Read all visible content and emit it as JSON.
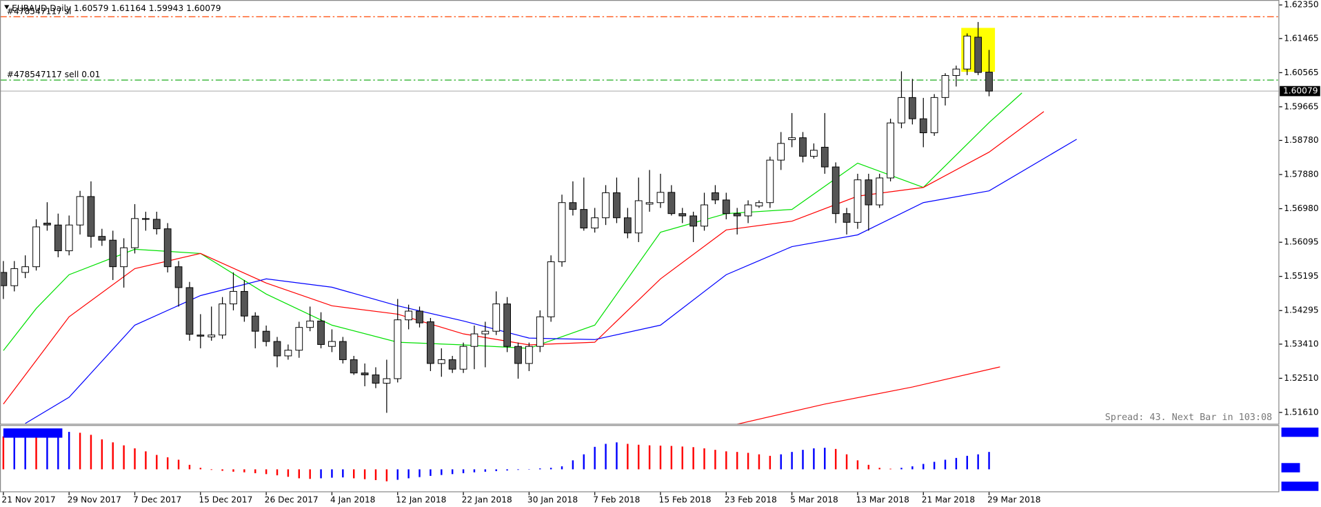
{
  "chart_data": {
    "type": "candlestick",
    "title": "EURAUD,Daily  1.60579 1.61164 1.59943 1.60079",
    "info": "Spread: 43. Next Bar in 103:08",
    "categories": [
      "21 Nov 2017",
      null,
      null,
      null,
      null,
      null,
      "29 Nov 2017",
      null,
      null,
      null,
      null,
      null,
      "7 Dec 2017",
      null,
      null,
      null,
      null,
      null,
      "15 Dec 2017",
      null,
      null,
      null,
      null,
      null,
      "26 Dec 2017",
      null,
      null,
      null,
      null,
      null,
      "4 Jan 2018",
      null,
      null,
      null,
      null,
      null,
      "12 Jan 2018",
      null,
      null,
      null,
      null,
      null,
      "22 Jan 2018",
      null,
      null,
      null,
      null,
      null,
      "30 Jan 2018",
      null,
      null,
      null,
      null,
      null,
      "7 Feb 2018",
      null,
      null,
      null,
      null,
      null,
      "15 Feb 2018",
      null,
      null,
      null,
      null,
      null,
      "23 Feb 2018",
      null,
      null,
      null,
      null,
      null,
      "5 Mar 2018",
      null,
      null,
      null,
      null,
      null,
      "13 Mar 2018",
      null,
      null,
      null,
      null,
      null,
      "21 Mar 2018",
      null,
      null,
      null,
      null,
      null,
      "29 Mar 2018"
    ],
    "ohlc": [
      [
        1.553,
        1.556,
        1.546,
        1.5495
      ],
      [
        1.5495,
        1.556,
        1.548,
        1.554
      ],
      [
        1.553,
        1.5575,
        1.5515,
        1.5545
      ],
      [
        1.5545,
        1.567,
        1.5535,
        1.565
      ],
      [
        1.566,
        1.5715,
        1.564,
        1.5655
      ],
      [
        1.5655,
        1.5685,
        1.557,
        1.5587
      ],
      [
        1.5587,
        1.568,
        1.5575,
        1.5655
      ],
      [
        1.5655,
        1.5745,
        1.563,
        1.573
      ],
      [
        1.573,
        1.577,
        1.5595,
        1.5625
      ],
      [
        1.5625,
        1.5645,
        1.56,
        1.5615
      ],
      [
        1.5615,
        1.564,
        1.551,
        1.5545
      ],
      [
        1.5545,
        1.562,
        1.549,
        1.5595
      ],
      [
        1.5595,
        1.571,
        1.558,
        1.5672
      ],
      [
        1.5672,
        1.569,
        1.564,
        1.567
      ],
      [
        1.567,
        1.569,
        1.563,
        1.5645
      ],
      [
        1.5645,
        1.566,
        1.553,
        1.5545
      ],
      [
        1.5545,
        1.556,
        1.544,
        1.549
      ],
      [
        1.549,
        1.5505,
        1.535,
        1.5367
      ],
      [
        1.5365,
        1.542,
        1.533,
        1.5362
      ],
      [
        1.536,
        1.544,
        1.535,
        1.5365
      ],
      [
        1.5365,
        1.5465,
        1.5355,
        1.5447
      ],
      [
        1.5447,
        1.553,
        1.543,
        1.548
      ],
      [
        1.548,
        1.551,
        1.54,
        1.5415
      ],
      [
        1.5415,
        1.5425,
        1.533,
        1.5375
      ],
      [
        1.5375,
        1.539,
        1.5335,
        1.5348
      ],
      [
        1.5348,
        1.536,
        1.528,
        1.531
      ],
      [
        1.531,
        1.534,
        1.53,
        1.5325
      ],
      [
        1.5325,
        1.54,
        1.5305,
        1.5385
      ],
      [
        1.5385,
        1.544,
        1.5375,
        1.5402
      ],
      [
        1.5402,
        1.5425,
        1.533,
        1.534
      ],
      [
        1.5335,
        1.538,
        1.532,
        1.5348
      ],
      [
        1.5348,
        1.536,
        1.529,
        1.53
      ],
      [
        1.53,
        1.531,
        1.526,
        1.5265
      ],
      [
        1.5265,
        1.529,
        1.523,
        1.526
      ],
      [
        1.526,
        1.528,
        1.5225,
        1.5238
      ],
      [
        1.5238,
        1.53,
        1.516,
        1.525
      ],
      [
        1.525,
        1.546,
        1.524,
        1.5405
      ],
      [
        1.5405,
        1.5445,
        1.538,
        1.5428
      ],
      [
        1.5428,
        1.544,
        1.5385,
        1.5397
      ],
      [
        1.54,
        1.541,
        1.527,
        1.529
      ],
      [
        1.529,
        1.533,
        1.5255,
        1.53
      ],
      [
        1.53,
        1.531,
        1.5265,
        1.5275
      ],
      [
        1.5275,
        1.5345,
        1.5265,
        1.5335
      ],
      [
        1.5335,
        1.539,
        1.5275,
        1.5368
      ],
      [
        1.5368,
        1.54,
        1.528,
        1.5375
      ],
      [
        1.5375,
        1.548,
        1.5365,
        1.5447
      ],
      [
        1.5447,
        1.5465,
        1.532,
        1.5335
      ],
      [
        1.5335,
        1.5345,
        1.525,
        1.529
      ],
      [
        1.529,
        1.5345,
        1.527,
        1.5335
      ],
      [
        1.5335,
        1.543,
        1.532,
        1.5413
      ],
      [
        1.5413,
        1.5575,
        1.54,
        1.5558
      ],
      [
        1.5558,
        1.5735,
        1.5545,
        1.5714
      ],
      [
        1.5714,
        1.577,
        1.568,
        1.5696
      ],
      [
        1.5696,
        1.578,
        1.564,
        1.5647
      ],
      [
        1.5647,
        1.57,
        1.5635,
        1.5674
      ],
      [
        1.5674,
        1.576,
        1.5655,
        1.574
      ],
      [
        1.574,
        1.578,
        1.566,
        1.5674
      ],
      [
        1.5674,
        1.57,
        1.562,
        1.5634
      ],
      [
        1.5634,
        1.578,
        1.561,
        1.5719
      ],
      [
        1.571,
        1.58,
        1.569,
        1.5714
      ],
      [
        1.5714,
        1.579,
        1.57,
        1.5741
      ],
      [
        1.5741,
        1.576,
        1.568,
        1.5685
      ],
      [
        1.5685,
        1.57,
        1.566,
        1.5679
      ],
      [
        1.5679,
        1.569,
        1.561,
        1.5652
      ],
      [
        1.5652,
        1.574,
        1.564,
        1.5708
      ],
      [
        1.574,
        1.576,
        1.571,
        1.5721
      ],
      [
        1.5721,
        1.574,
        1.567,
        1.5685
      ],
      [
        1.5685,
        1.57,
        1.563,
        1.5679
      ],
      [
        1.5679,
        1.572,
        1.566,
        1.5708
      ],
      [
        1.5705,
        1.572,
        1.57,
        1.5714
      ],
      [
        1.5714,
        1.5835,
        1.57,
        1.5826
      ],
      [
        1.5826,
        1.59,
        1.58,
        1.587
      ],
      [
        1.588,
        1.595,
        1.586,
        1.5885
      ],
      [
        1.5885,
        1.59,
        1.582,
        1.5836
      ],
      [
        1.5836,
        1.587,
        1.583,
        1.5852
      ],
      [
        1.586,
        1.595,
        1.579,
        1.5808
      ],
      [
        1.5808,
        1.582,
        1.566,
        1.5685
      ],
      [
        1.5685,
        1.57,
        1.563,
        1.5662
      ],
      [
        1.5662,
        1.579,
        1.5645,
        1.5774
      ],
      [
        1.5774,
        1.579,
        1.564,
        1.5708
      ],
      [
        1.5708,
        1.579,
        1.57,
        1.5779
      ],
      [
        1.5779,
        1.5935,
        1.577,
        1.5924
      ],
      [
        1.5924,
        1.606,
        1.591,
        1.5991
      ],
      [
        1.5991,
        1.604,
        1.592,
        1.5935
      ],
      [
        1.5935,
        1.599,
        1.586,
        1.5898
      ],
      [
        1.5898,
        1.6,
        1.589,
        1.5991
      ],
      [
        1.5991,
        1.6055,
        1.597,
        1.6049
      ],
      [
        1.6049,
        1.6075,
        1.602,
        1.6066
      ],
      [
        1.6066,
        1.616,
        1.605,
        1.6153
      ],
      [
        1.615,
        1.619,
        1.605,
        1.6057
      ],
      [
        1.60579,
        1.61164,
        1.59943,
        1.60079
      ]
    ],
    "up_color": "#ffffff",
    "down_color": "#555555",
    "series": [
      {
        "color": "#00e000",
        "x": [
          0,
          3,
          6,
          12,
          18,
          24,
          30,
          36,
          42,
          48,
          54,
          60,
          66,
          72,
          78,
          84,
          90,
          93
        ],
        "values": [
          1.5324,
          1.5435,
          1.5524,
          1.5591,
          1.558,
          1.5473,
          1.5391,
          1.5346,
          1.5339,
          1.533,
          1.5391,
          1.5636,
          1.5685,
          1.5696,
          1.5818,
          1.5754,
          1.5925,
          1.6003
        ]
      },
      {
        "color": "#ff0000",
        "x": [
          0,
          6,
          12,
          18,
          24,
          30,
          36,
          42,
          48,
          54,
          60,
          66,
          72,
          78,
          84,
          90,
          95
        ],
        "values": [
          1.5183,
          1.5413,
          1.554,
          1.558,
          1.5502,
          1.5442,
          1.542,
          1.5368,
          1.5339,
          1.5346,
          1.5513,
          1.5642,
          1.5665,
          1.5731,
          1.5754,
          1.5847,
          1.5954
        ]
      },
      {
        "color": "#0000ff",
        "x": [
          2,
          6,
          12,
          18,
          24,
          30,
          36,
          42,
          48,
          54,
          60,
          66,
          72,
          78,
          84,
          90,
          98
        ],
        "values": [
          1.5132,
          1.5201,
          1.5391,
          1.5469,
          1.5513,
          1.5491,
          1.5442,
          1.5402,
          1.5357,
          1.5353,
          1.5391,
          1.5524,
          1.5598,
          1.5629,
          1.5714,
          1.5745,
          1.5881
        ]
      },
      {
        "color": "#ff0000",
        "x": [
          67,
          75,
          83,
          91
        ],
        "values": [
          1.513,
          1.5183,
          1.5228,
          1.5281
        ]
      }
    ],
    "orders": [
      {
        "label": "#478547117 sl",
        "value": 1.6204,
        "color": "#ff4500"
      },
      {
        "label": "#478547117 sell 0.01",
        "value": 1.6037,
        "color": "#00a000"
      }
    ],
    "last_price": 1.60079,
    "ylim": [
      1.513,
      1.6248
    ],
    "yticks": [
      {
        "value": 1.6235,
        "label": "1.62350"
      },
      1.61465,
      1.60565,
      1.59665,
      {
        "value": 1.5878,
        "label": "1.58780"
      },
      {
        "value": 1.5788,
        "label": "1.57880"
      },
      {
        "value": 1.5698,
        "label": "1.56980"
      },
      1.56095,
      1.55195,
      1.54295,
      {
        "value": 1.5341,
        "label": "1.53410"
      },
      {
        "value": 1.5251,
        "label": "1.52510"
      },
      {
        "value": 1.5161,
        "label": "1.51610"
      }
    ],
    "indicator": {
      "up_color": "#0000ff",
      "down_color": "#ff0000",
      "ylim": [
        -0.0075,
        0.0145
      ],
      "values": [
        0.011,
        0.0112,
        0.0115,
        0.0112,
        0.0118,
        0.012,
        0.0125,
        0.0122,
        0.0115,
        0.01,
        0.009,
        0.008,
        0.007,
        0.006,
        0.0048,
        0.004,
        0.0032,
        0.0015,
        0.0005,
        -0.0002,
        -0.0005,
        -0.0008,
        -0.001,
        -0.0013,
        -0.0016,
        -0.002,
        -0.0025,
        -0.003,
        -0.0032,
        -0.003,
        -0.0028,
        -0.0027,
        -0.003,
        -0.0033,
        -0.0036,
        -0.004,
        -0.0035,
        -0.003,
        -0.0026,
        -0.0022,
        -0.0019,
        -0.0016,
        -0.0013,
        -0.001,
        -0.0008,
        -0.0006,
        -0.0004,
        -0.0002,
        -0.0001,
        0.0003,
        0.0005,
        0.001,
        0.003,
        0.005,
        0.0075,
        0.0085,
        0.009,
        0.0085,
        0.0082,
        0.008,
        0.0079,
        0.0078,
        0.0076,
        0.0074,
        0.007,
        0.0065,
        0.006,
        0.0058,
        0.0055,
        0.005,
        0.0045,
        0.005,
        0.0058,
        0.0065,
        0.007,
        0.0072,
        0.0068,
        0.005,
        0.003,
        0.0015,
        0.0005,
        0.0002,
        0.0005,
        0.001,
        0.0018,
        0.0025,
        0.0032,
        0.0038,
        0.0045,
        0.005,
        0.0058
      ]
    }
  }
}
